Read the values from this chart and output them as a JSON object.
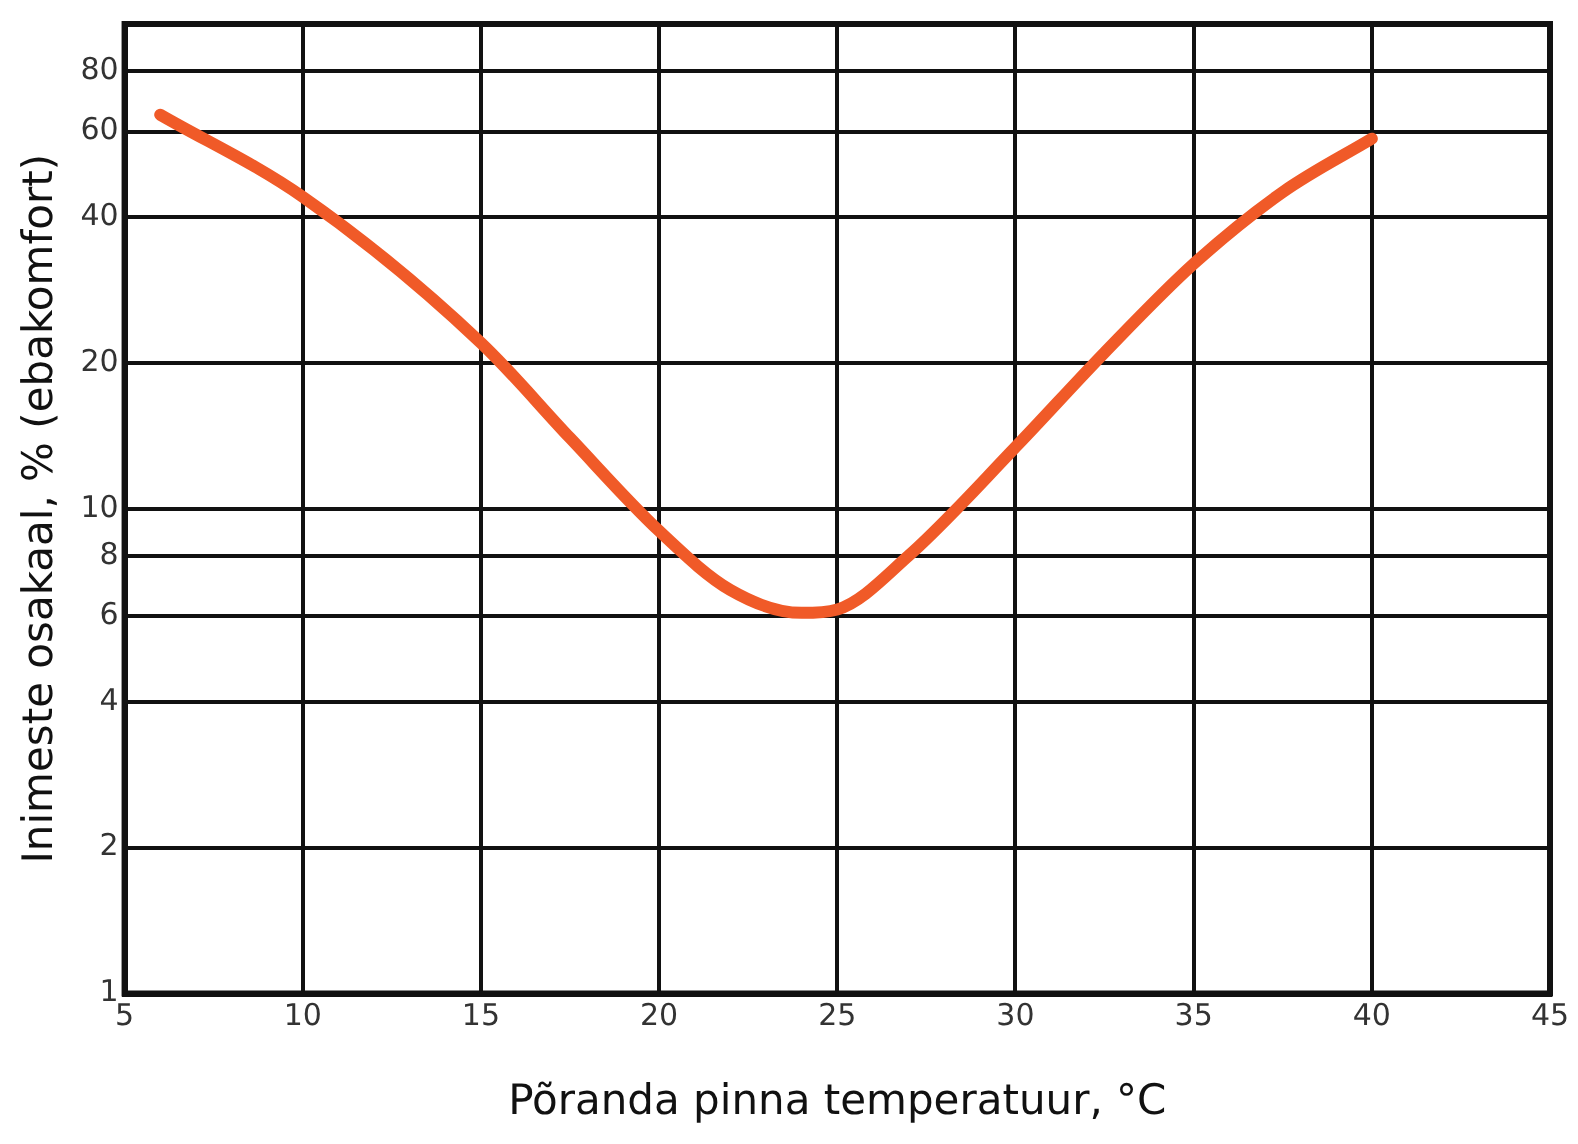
{
  "chart_data": {
    "type": "line",
    "xlabel": "Põranda pinna temperatuur, °C",
    "ylabel": "Inimeste osakaal, % (ebakomfort)",
    "x": [
      6,
      10,
      15,
      17.5,
      20,
      22,
      24,
      25,
      27,
      30,
      32.5,
      35,
      37.5,
      40
    ],
    "series": [
      {
        "color": "#f05a28",
        "values": [
          65,
          44,
          22,
          14,
          9,
          6.8,
          6.1,
          6.2,
          8,
          13.4,
          21,
          32,
          45,
          58
        ]
      }
    ],
    "xlim": [
      5,
      45
    ],
    "xticks": [
      5,
      10,
      15,
      20,
      25,
      30,
      35,
      40,
      45
    ],
    "ylim": [
      1,
      100
    ],
    "yticks": [
      1,
      2,
      4,
      6,
      8,
      10,
      20,
      40,
      60,
      80
    ],
    "log": "y",
    "grid": true,
    "legend": false,
    "marker": "none",
    "line_style": "solid"
  }
}
